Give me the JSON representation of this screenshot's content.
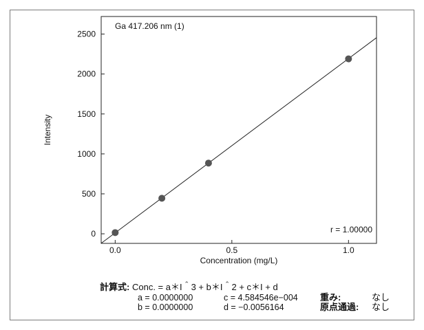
{
  "chart_data": {
    "type": "scatter",
    "title": "Ga 417.206 nm (1)",
    "xlabel": "Concentration (mg/L)",
    "ylabel": "Intensity",
    "xlim": [
      -0.06,
      1.12
    ],
    "ylim": [
      -120,
      2720
    ],
    "x_ticks": [
      "0.0",
      "0.5",
      "1.0"
    ],
    "y_ticks": [
      "0",
      "500",
      "1000",
      "1500",
      "2000",
      "2500"
    ],
    "points": [
      {
        "x": 0.0,
        "y": 15
      },
      {
        "x": 0.2,
        "y": 445
      },
      {
        "x": 0.4,
        "y": 885
      },
      {
        "x": 1.0,
        "y": 2190
      }
    ],
    "fit_line": {
      "slope": 2180.82,
      "intercept": 12.24
    },
    "annotation": "r = 1.00000",
    "grid": false
  },
  "formula": {
    "prefix": "計算式:",
    "expression": "Conc. = a＊I＾3 + b＊I＾2 + c＊I + d"
  },
  "coefficients": {
    "a": "a = 0.0000000",
    "b": "b = 0.0000000",
    "c": "c = 4.584546e−004",
    "d": "d = −0.0056164"
  },
  "options": {
    "weight_label": "重み:",
    "weight_value": "なし",
    "origin_label": "原点通過:",
    "origin_value": "なし"
  },
  "colors": {
    "marker": "#555555",
    "line": "#222222",
    "axis": "#222222"
  }
}
